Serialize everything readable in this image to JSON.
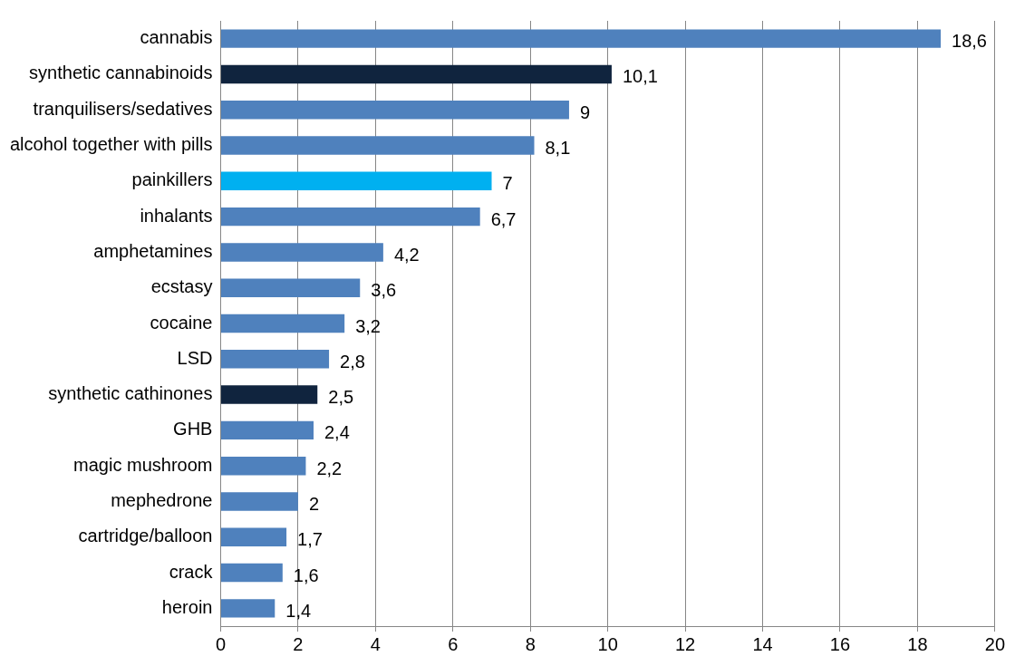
{
  "chart_data": {
    "type": "bar",
    "orientation": "horizontal",
    "categories": [
      "cannabis",
      "synthetic cannabinoids",
      "tranquilisers/sedatives",
      "alcohol together with pills",
      "painkillers",
      "inhalants",
      "amphetamines",
      "ecstasy",
      "cocaine",
      "LSD",
      "synthetic cathinones",
      "GHB",
      "magic mushroom",
      "mephedrone",
      "cartridge/balloon",
      "crack",
      "heroin"
    ],
    "values": [
      18.6,
      10.1,
      9,
      8.1,
      7,
      6.7,
      4.2,
      3.6,
      3.2,
      2.8,
      2.5,
      2.4,
      2.2,
      2,
      1.7,
      1.6,
      1.4
    ],
    "value_labels": [
      "18,6",
      "10,1",
      "9",
      "8,1",
      "7",
      "6,7",
      "4,2",
      "3,6",
      "3,2",
      "2,8",
      "2,5",
      "2,4",
      "2,2",
      "2",
      "1,7",
      "1,6",
      "1,4"
    ],
    "colors": [
      "#4f81bd",
      "#10243e",
      "#4f81bd",
      "#4f81bd",
      "#00b0f0",
      "#4f81bd",
      "#4f81bd",
      "#4f81bd",
      "#4f81bd",
      "#4f81bd",
      "#10243e",
      "#4f81bd",
      "#4f81bd",
      "#4f81bd",
      "#4f81bd",
      "#4f81bd",
      "#4f81bd"
    ],
    "xlim": [
      0,
      20
    ],
    "xticks": [
      0,
      2,
      4,
      6,
      8,
      10,
      12,
      14,
      16,
      18,
      20
    ],
    "grid": "x",
    "legend": false
  }
}
